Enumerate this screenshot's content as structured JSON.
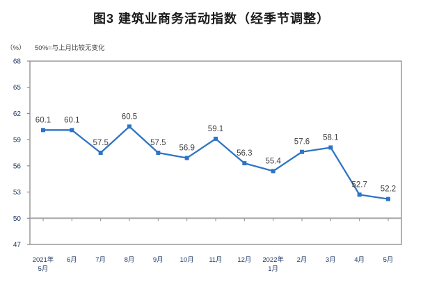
{
  "chart_data": {
    "type": "line",
    "title": "图3 建筑业商务活动指数（经季节调整）",
    "unit_label": "（%）",
    "note": "50%=与上月比较无变化",
    "x_labels": [
      [
        "2021年",
        "5月"
      ],
      [
        "6月"
      ],
      [
        "7月"
      ],
      [
        "8月"
      ],
      [
        "9月"
      ],
      [
        "10月"
      ],
      [
        "11月"
      ],
      [
        "12月"
      ],
      [
        "2022年",
        "1月"
      ],
      [
        "2月"
      ],
      [
        "3月"
      ],
      [
        "4月"
      ],
      [
        "5月"
      ]
    ],
    "series": [
      {
        "name": "建筑业商务活动指数",
        "values": [
          60.1,
          60.1,
          57.5,
          60.5,
          57.5,
          56.9,
          59.1,
          56.3,
          55.4,
          57.6,
          58.1,
          52.7,
          52.2
        ]
      }
    ],
    "ylim": [
      47,
      68
    ],
    "ytick_step": 3,
    "ytick_labels": [
      "47",
      "50",
      "53",
      "56",
      "59",
      "62",
      "65",
      "68"
    ],
    "ref_line": 50,
    "grid": false,
    "legend": "none",
    "marker": "square",
    "data_labels_shown": true,
    "colors": {
      "line": "#2E74C6",
      "frame": "#8A8A8A",
      "ref_line": "#A8A8A8",
      "axis_text": "#1F3864",
      "data_label_text": "#404040",
      "title_text": "#1a1a1a"
    }
  }
}
